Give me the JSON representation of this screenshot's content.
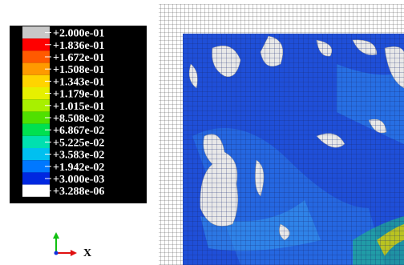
{
  "legend": {
    "levels": [
      {
        "label": "+2.000e-01",
        "color": "#c8c8c8"
      },
      {
        "label": "+1.836e-01",
        "color": "#ff0000"
      },
      {
        "label": "+1.672e-01",
        "color": "#ff5a00"
      },
      {
        "label": "+1.508e-01",
        "color": "#ff9a00"
      },
      {
        "label": "+1.343e-01",
        "color": "#ffd400"
      },
      {
        "label": "+1.179e-01",
        "color": "#e6f000"
      },
      {
        "label": "+1.015e-01",
        "color": "#a8f000"
      },
      {
        "label": "+8.508e-02",
        "color": "#50e000"
      },
      {
        "label": "+6.867e-02",
        "color": "#00e050"
      },
      {
        "label": "+5.225e-02",
        "color": "#00e0b0"
      },
      {
        "label": "+3.583e-02",
        "color": "#00c0f0"
      },
      {
        "label": "+1.942e-02",
        "color": "#0078ff"
      },
      {
        "label": "+3.000e-03",
        "color": "#0028e0"
      },
      {
        "label": "+3.288e-06",
        "color": "#ffffff"
      }
    ]
  },
  "triad": {
    "x_label": "X"
  }
}
